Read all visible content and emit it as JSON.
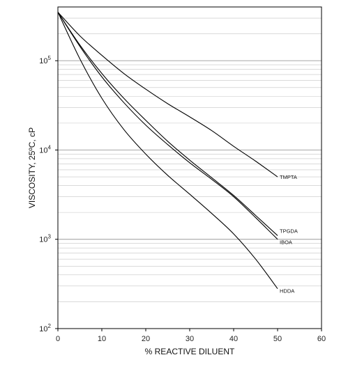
{
  "chart_data": {
    "type": "line",
    "title": "",
    "xlabel": "% REACTIVE DILUENT",
    "ylabel": "VISCOSITY, 25ºC, cP",
    "xlim": [
      0,
      60
    ],
    "ylim": [
      100,
      400000
    ],
    "yscale": "log",
    "xticks": [
      "0",
      "10",
      "20",
      "30",
      "40",
      "50",
      "60"
    ],
    "yticks": [
      {
        "base": "10",
        "exp": "2",
        "value": 100
      },
      {
        "base": "10",
        "exp": "3",
        "value": 1000
      },
      {
        "base": "10",
        "exp": "4",
        "value": 10000
      },
      {
        "base": "10",
        "exp": "5",
        "value": 100000
      }
    ],
    "grid": "horizontal minor log gridlines",
    "legend": "labels at line ends",
    "series": [
      {
        "name": "TMPTA",
        "x": [
          0,
          5,
          10,
          15,
          20,
          25,
          30,
          35,
          40,
          45,
          50
        ],
        "y": [
          350000,
          190000,
          115000,
          72000,
          48000,
          33000,
          23500,
          16500,
          11000,
          7500,
          5000
        ]
      },
      {
        "name": "TPGDA",
        "x": [
          0,
          5,
          10,
          15,
          20,
          25,
          30,
          35,
          40,
          45,
          50
        ],
        "y": [
          350000,
          150000,
          72000,
          38000,
          21500,
          12500,
          7700,
          4900,
          3100,
          1850,
          1100
        ]
      },
      {
        "name": "IBOA",
        "x": [
          0,
          5,
          10,
          15,
          20,
          25,
          30,
          35,
          40,
          45,
          50
        ],
        "y": [
          350000,
          145000,
          66000,
          34000,
          19000,
          11500,
          7200,
          4700,
          3000,
          1750,
          1000
        ]
      },
      {
        "name": "HDDA",
        "x": [
          0,
          5,
          10,
          15,
          20,
          25,
          30,
          35,
          40,
          45,
          50
        ],
        "y": [
          350000,
          105000,
          38000,
          17000,
          9000,
          5200,
          3200,
          1950,
          1150,
          600,
          280
        ]
      }
    ]
  }
}
